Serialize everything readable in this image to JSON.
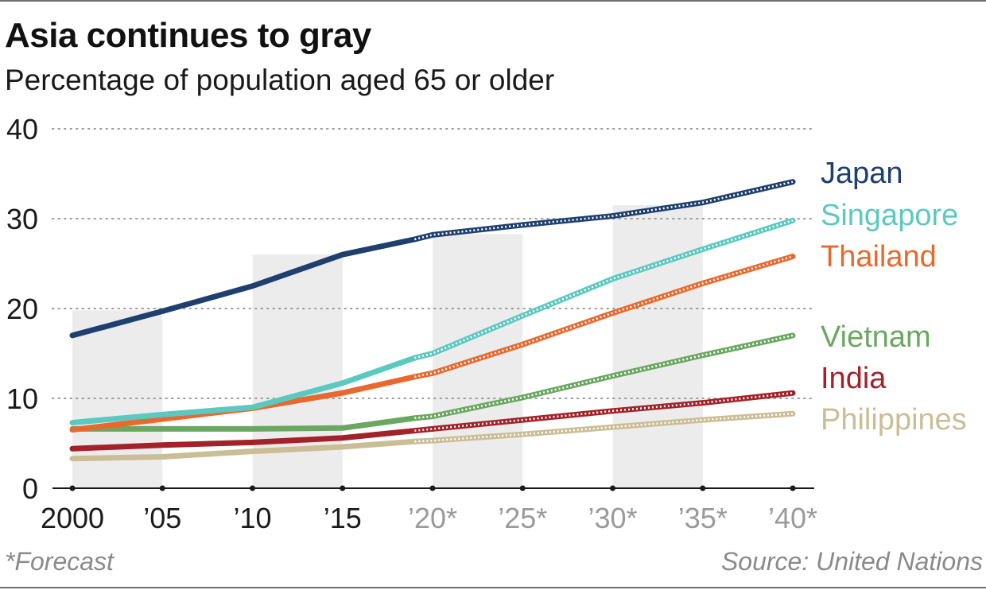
{
  "title": "Asia continues to gray",
  "subtitle": "Percentage of population aged 65 or older",
  "footnote": "*Forecast",
  "source": "Source: United Nations",
  "chart_data": {
    "type": "line",
    "x": [
      2000,
      2005,
      2010,
      2015,
      2019,
      2020,
      2025,
      2030,
      2035,
      2040
    ],
    "x_tick_values": [
      2000,
      2005,
      2010,
      2015,
      2020,
      2025,
      2030,
      2035,
      2040
    ],
    "x_tick_labels": [
      "2000",
      "’05",
      "’10",
      "’15",
      "’20*",
      "’25*",
      "’30*",
      "’35*",
      "’40*"
    ],
    "forecast_from": 2019,
    "ylim": [
      0,
      40
    ],
    "y_ticks": [
      0,
      10,
      20,
      30,
      40
    ],
    "y_tick_labels": [
      "0",
      "10",
      "20",
      "30",
      "40"
    ],
    "grid": "horizontal dotted",
    "shaded_bands": [
      [
        2000,
        2005
      ],
      [
        2010,
        2015
      ],
      [
        2020,
        2025
      ],
      [
        2030,
        2035
      ]
    ],
    "colors": {
      "Japan": "#1f3f6e",
      "Singapore": "#5cc9c0",
      "Thailand": "#e8692e",
      "Vietnam": "#6aa760",
      "India": "#a3222a",
      "Philippines": "#cbbd95",
      "forecast_tick_label": "#9a9a9a",
      "band": "#ececec"
    },
    "series": [
      {
        "name": "Japan",
        "values": [
          17.0,
          19.7,
          22.5,
          26.0,
          27.7,
          28.2,
          29.3,
          30.3,
          31.8,
          34.1
        ]
      },
      {
        "name": "Singapore",
        "values": [
          7.3,
          8.2,
          9.0,
          11.7,
          14.5,
          15.0,
          19.2,
          23.3,
          26.6,
          29.8
        ]
      },
      {
        "name": "Thailand",
        "values": [
          6.5,
          7.7,
          8.9,
          10.6,
          12.4,
          12.8,
          16.0,
          19.5,
          22.8,
          25.8
        ]
      },
      {
        "name": "Vietnam",
        "values": [
          6.6,
          6.6,
          6.6,
          6.7,
          7.8,
          8.0,
          10.1,
          12.5,
          14.8,
          17.0
        ]
      },
      {
        "name": "India",
        "values": [
          4.4,
          4.8,
          5.1,
          5.6,
          6.4,
          6.6,
          7.6,
          8.6,
          9.5,
          10.6
        ]
      },
      {
        "name": "Philippines",
        "values": [
          3.3,
          3.5,
          4.1,
          4.6,
          5.2,
          5.3,
          6.0,
          6.8,
          7.6,
          8.3
        ]
      }
    ]
  }
}
